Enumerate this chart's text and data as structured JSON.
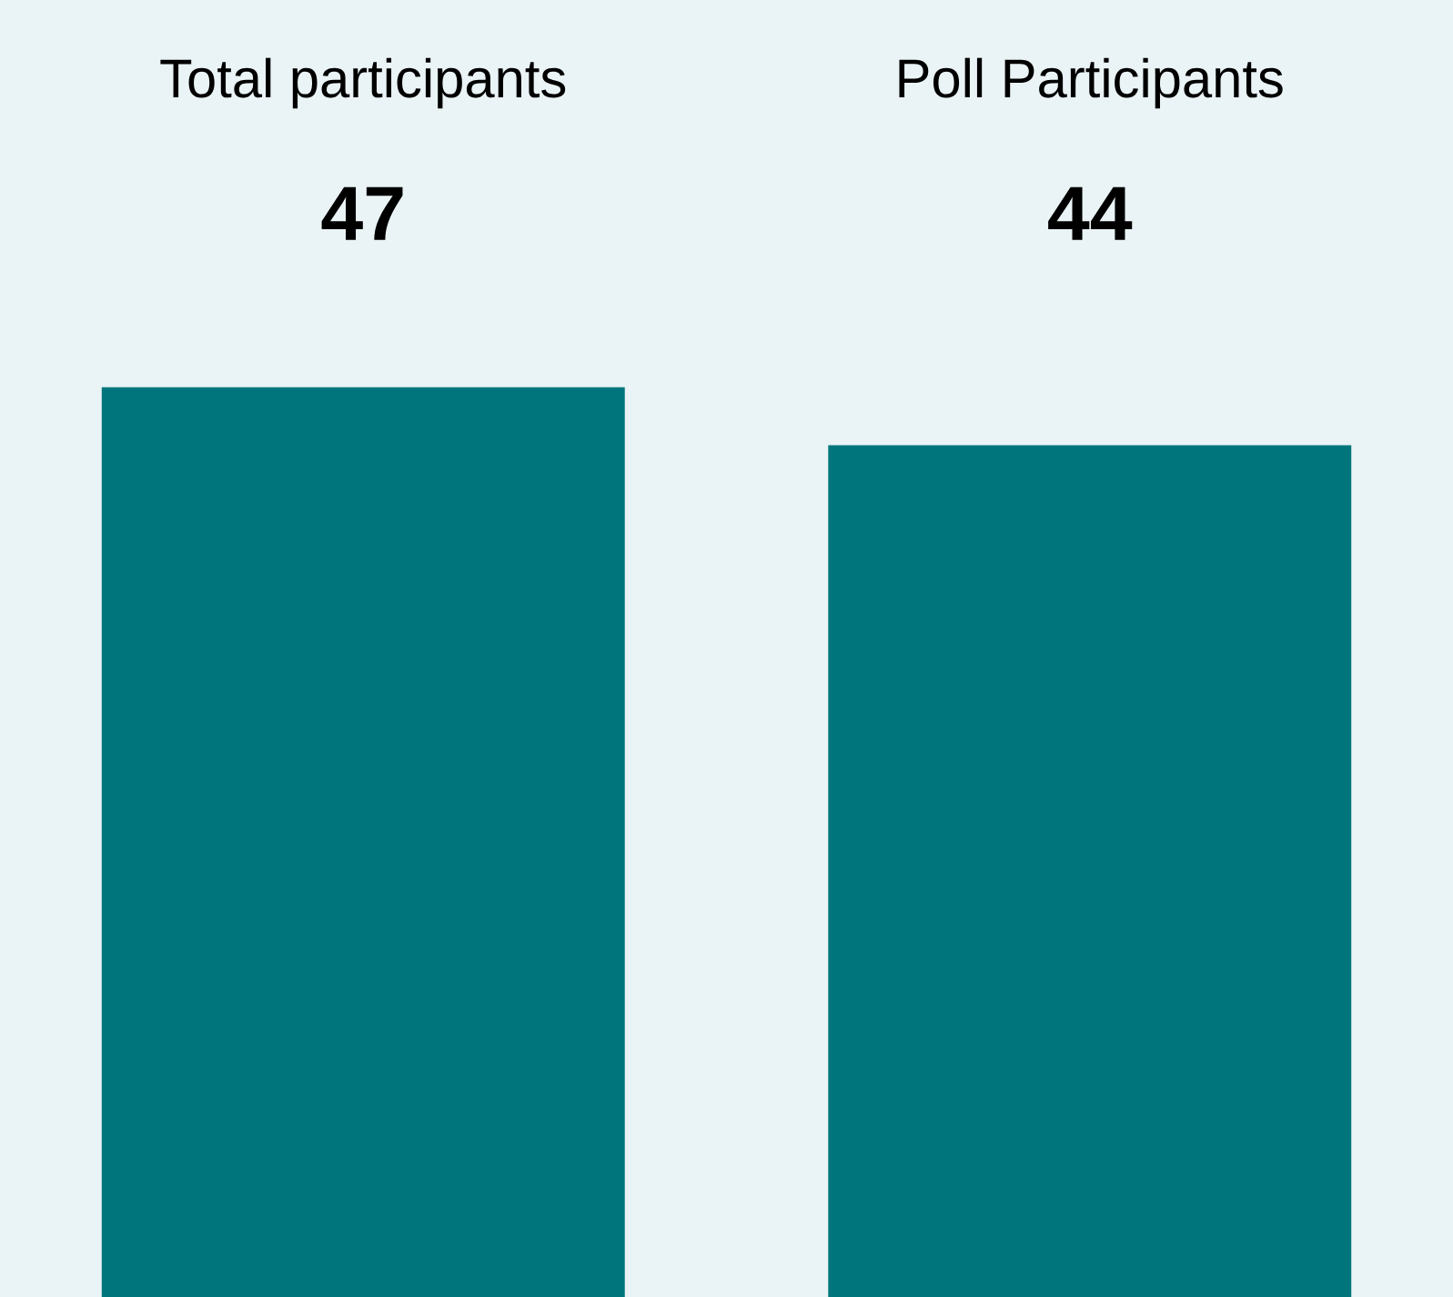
{
  "chart_data": {
    "type": "bar",
    "categories": [
      "Total participants",
      "Poll Participants"
    ],
    "values": [
      47,
      44
    ],
    "color": "#00767c",
    "data_labels": true,
    "ylim": [
      0,
      67
    ]
  }
}
